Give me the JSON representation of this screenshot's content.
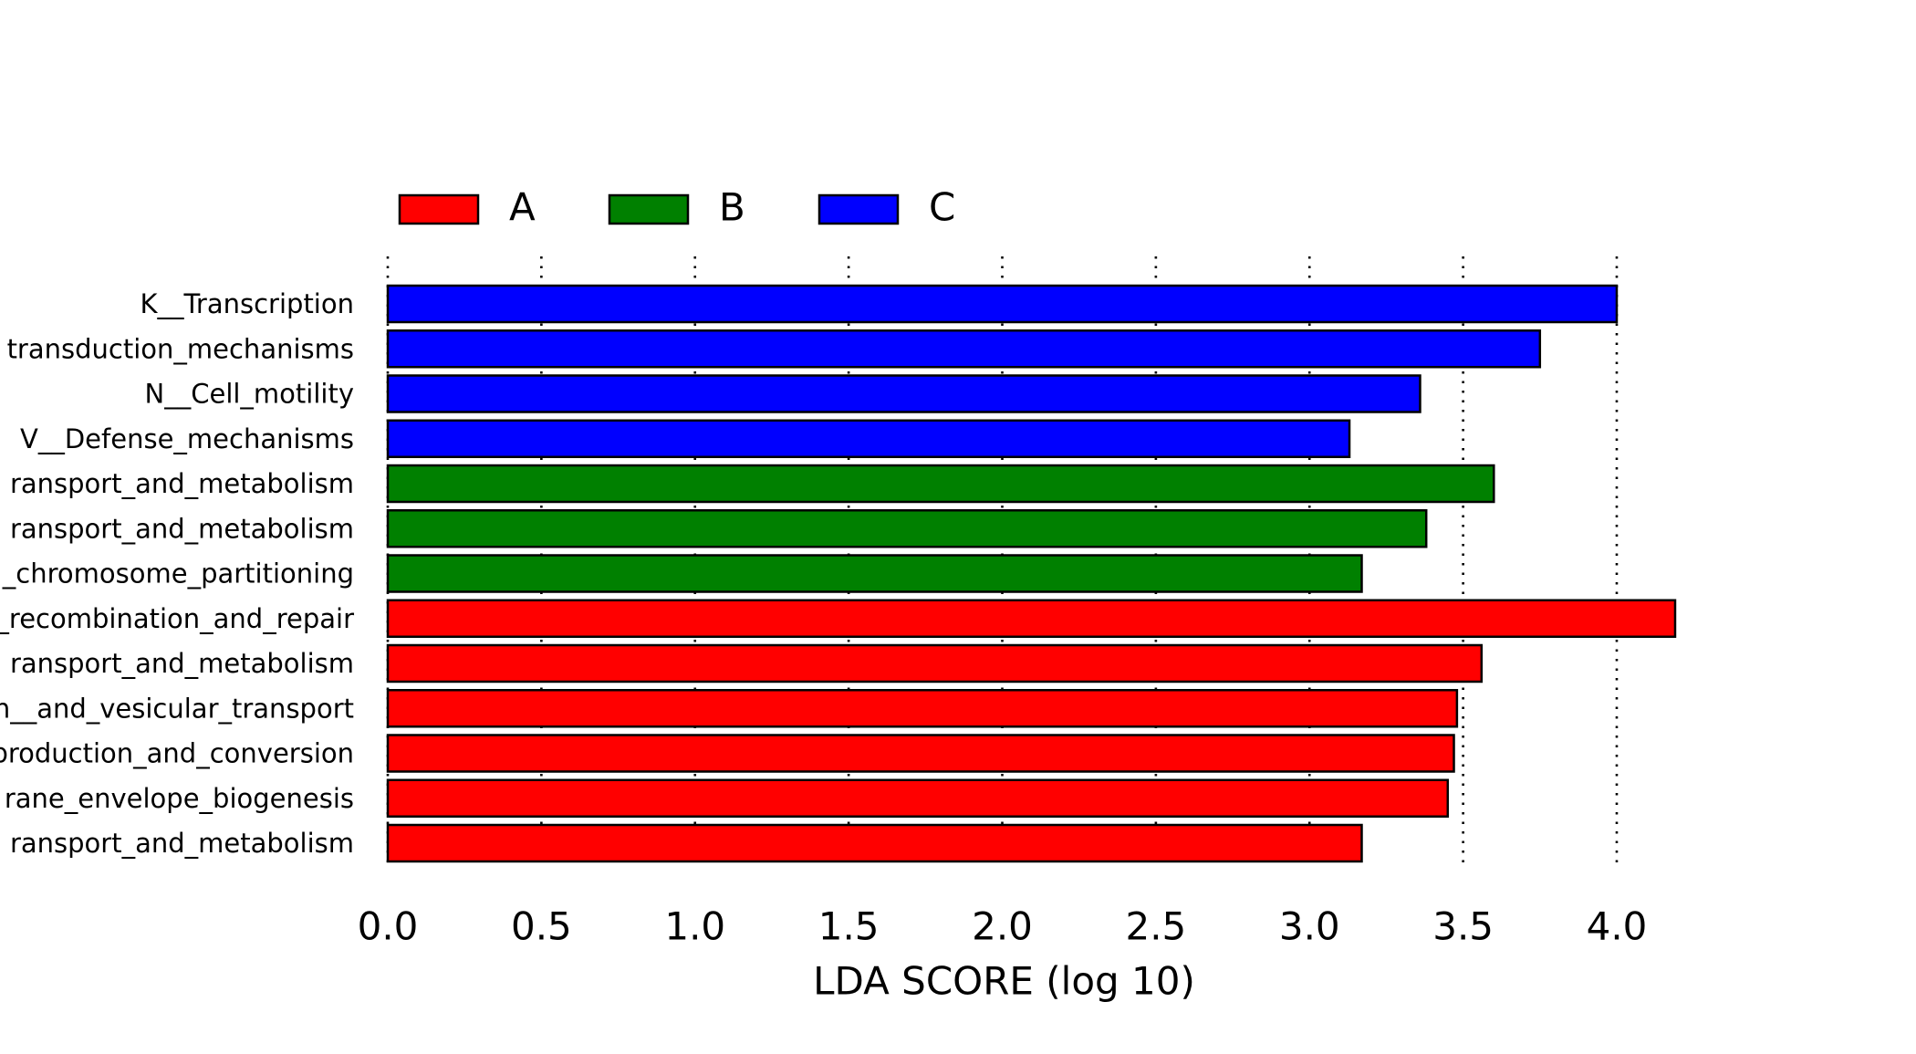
{
  "chart_data": {
    "type": "bar",
    "orientation": "horizontal",
    "xlabel": "LDA SCORE (log 10)",
    "ylabel": "",
    "title": "",
    "xlim": [
      0.0,
      4.0
    ],
    "xticks": [
      0.0,
      0.5,
      1.0,
      1.5,
      2.0,
      2.5,
      3.0,
      3.5,
      4.0
    ],
    "xtick_labels": [
      "0.0",
      "0.5",
      "1.0",
      "1.5",
      "2.0",
      "2.5",
      "3.0",
      "3.5",
      "4.0"
    ],
    "grid": "vertical dotted lines at ticks",
    "legend": {
      "placement": "top-left",
      "items": [
        {
          "label": "A",
          "color": "#ff0000"
        },
        {
          "label": "B",
          "color": "#008000"
        },
        {
          "label": "C",
          "color": "#0000ff"
        }
      ]
    },
    "bars": [
      {
        "label": "K__Transcription",
        "value": 4.0,
        "group": "C",
        "color": "#0000ff"
      },
      {
        "label": "transduction_mechanisms",
        "value": 3.75,
        "group": "C",
        "color": "#0000ff"
      },
      {
        "label": "N__Cell_motility",
        "value": 3.36,
        "group": "C",
        "color": "#0000ff"
      },
      {
        "label": "V__Defense_mechanisms",
        "value": 3.13,
        "group": "C",
        "color": "#0000ff"
      },
      {
        "label": "ransport_and_metabolism",
        "value": 3.6,
        "group": "B",
        "color": "#008000"
      },
      {
        "label": "ransport_and_metabolism",
        "value": 3.38,
        "group": "B",
        "color": "#008000"
      },
      {
        "label": "_chromosome_partitioning",
        "value": 3.17,
        "group": "B",
        "color": "#008000"
      },
      {
        "label": "_recombination_and_repair",
        "value": 4.19,
        "group": "A",
        "color": "#ff0000"
      },
      {
        "label": "ransport_and_metabolism",
        "value": 3.56,
        "group": "A",
        "color": "#ff0000"
      },
      {
        "label": "n__and_vesicular_transport",
        "value": 3.48,
        "group": "A",
        "color": "#ff0000"
      },
      {
        "label": "production_and_conversion",
        "value": 3.47,
        "group": "A",
        "color": "#ff0000"
      },
      {
        "label": "rane_envelope_biogenesis",
        "value": 3.45,
        "group": "A",
        "color": "#ff0000"
      },
      {
        "label": "ransport_and_metabolism",
        "value": 3.17,
        "group": "A",
        "color": "#ff0000"
      }
    ]
  }
}
